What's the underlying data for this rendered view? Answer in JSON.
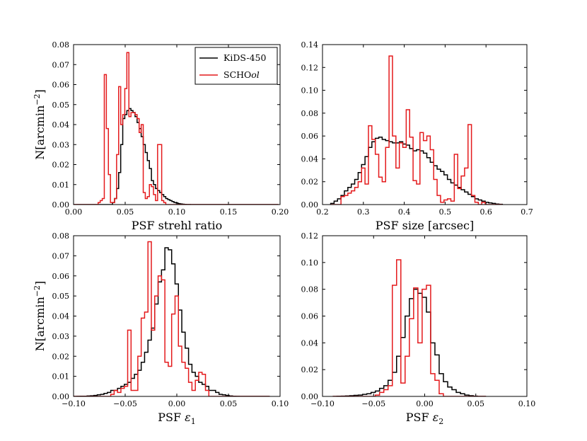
{
  "chart_data": [
    {
      "type": "step-histogram",
      "xlabel": "PSF strehl ratio",
      "ylabel": "N[arcmin^-2]",
      "xlim": [
        0.0,
        0.2
      ],
      "ylim": [
        0.0,
        0.08
      ],
      "xticks": [
        0.0,
        0.05,
        0.1,
        0.15,
        0.2
      ],
      "xtick_labels": [
        "0.00",
        "0.05",
        "0.10",
        "0.15",
        "0.20"
      ],
      "yticks": [
        0.0,
        0.01,
        0.02,
        0.03,
        0.04,
        0.05,
        0.06,
        0.07,
        0.08
      ],
      "ytick_labels": [
        "0.00",
        "0.01",
        "0.02",
        "0.03",
        "0.04",
        "0.05",
        "0.06",
        "0.07",
        "0.08"
      ],
      "legend": {
        "position": "top-right",
        "entries": [
          "KiDS-450",
          "SCHOol"
        ]
      },
      "series": [
        {
          "name": "KiDS-450",
          "color": "#000000",
          "bin_edges": [
            0.0,
            0.1985
          ],
          "values": [
            0,
            0,
            0,
            0,
            0,
            0,
            0,
            0,
            0,
            0,
            0,
            0,
            0,
            0,
            0,
            0,
            0,
            0,
            0,
            0.001,
            0.003,
            0.008,
            0.016,
            0.03,
            0.043,
            0.045,
            0.047,
            0.048,
            0.047,
            0.046,
            0.044,
            0.041,
            0.038,
            0.034,
            0.03,
            0.026,
            0.022,
            0.018,
            0.012,
            0.01,
            0.008,
            0.007,
            0.006,
            0.005,
            0.004,
            0.003,
            0.0025,
            0.002,
            0.0015,
            0.001,
            0.0008,
            0.0005,
            0.0003,
            0.0002,
            0.0001,
            5e-05,
            3e-05,
            0,
            0,
            0,
            0,
            0,
            0,
            0,
            0,
            0,
            0,
            0,
            0,
            0,
            0,
            0,
            0,
            0,
            0,
            0,
            0,
            0,
            0,
            0,
            0,
            0,
            0,
            0,
            0,
            0,
            0,
            0,
            0,
            0,
            0,
            0,
            0,
            0,
            0,
            0,
            0,
            0,
            0,
            0
          ]
        },
        {
          "name": "SCHOol",
          "color": "#e41a1c",
          "bin_edges": [
            0.0,
            0.1985
          ],
          "values": [
            0,
            0,
            0,
            0,
            0,
            0,
            0,
            0,
            0,
            0,
            0,
            0,
            0.001,
            0.002,
            0.003,
            0.065,
            0.038,
            0.015,
            0.001,
            0.001,
            0.003,
            0.025,
            0.059,
            0.04,
            0.045,
            0.058,
            0.076,
            0.044,
            0.046,
            0.046,
            0.045,
            0.043,
            0.036,
            0.04,
            0.006,
            0.003,
            0.004,
            0.01,
            0.009,
            0.005,
            0.002,
            0.03,
            0.03,
            0.002,
            0.001,
            0,
            0,
            0,
            0,
            0,
            0,
            0,
            0,
            0,
            0,
            0,
            0,
            0,
            0,
            0,
            0,
            0,
            0,
            0,
            0,
            0,
            0,
            0,
            0,
            0,
            0,
            0,
            0,
            0,
            0,
            0,
            0,
            0,
            0,
            0,
            0,
            0,
            0,
            0,
            0,
            0,
            0,
            0,
            0,
            0,
            0,
            0,
            0,
            0,
            0,
            0,
            0,
            0,
            0,
            0
          ]
        }
      ]
    },
    {
      "type": "step-histogram",
      "xlabel": "PSF size [arcsec]",
      "ylabel": "",
      "xlim": [
        0.2,
        0.7
      ],
      "ylim": [
        0.0,
        0.14
      ],
      "xticks": [
        0.2,
        0.3,
        0.4,
        0.5,
        0.6,
        0.7
      ],
      "xtick_labels": [
        "0.2",
        "0.3",
        "0.4",
        "0.5",
        "0.6",
        "0.7"
      ],
      "yticks": [
        0.0,
        0.02,
        0.04,
        0.06,
        0.08,
        0.1,
        0.12,
        0.14
      ],
      "ytick_labels": [
        "0.00",
        "0.02",
        "0.04",
        "0.06",
        "0.08",
        "0.10",
        "0.12",
        "0.14"
      ],
      "series": [
        {
          "name": "KiDS-450",
          "color": "#000000",
          "bin_edges": [
            0.22,
            0.64
          ],
          "values": [
            0.001,
            0.003,
            0.005,
            0.008,
            0.012,
            0.015,
            0.018,
            0.022,
            0.028,
            0.035,
            0.042,
            0.05,
            0.055,
            0.058,
            0.059,
            0.057,
            0.056,
            0.055,
            0.054,
            0.054,
            0.055,
            0.053,
            0.052,
            0.049,
            0.047,
            0.048,
            0.047,
            0.045,
            0.041,
            0.037,
            0.034,
            0.031,
            0.029,
            0.026,
            0.022,
            0.019,
            0.017,
            0.015,
            0.013,
            0.011,
            0.009,
            0.007,
            0.005,
            0.004,
            0.003,
            0.002,
            0.0015,
            0.001,
            0.0005,
            0.0002
          ]
        },
        {
          "name": "SCHOol",
          "color": "#e41a1c",
          "bin_edges": [
            0.22,
            0.64
          ],
          "values": [
            0,
            0,
            0,
            0.007,
            0.008,
            0.01,
            0.012,
            0.015,
            0.02,
            0.032,
            0.018,
            0.069,
            0.057,
            0.044,
            0.024,
            0.02,
            0.05,
            0.13,
            0.06,
            0.032,
            0.054,
            0.05,
            0.083,
            0.059,
            0.021,
            0.018,
            0.063,
            0.056,
            0.06,
            0.048,
            0.022,
            0.008,
            0.002,
            0.004,
            0.005,
            0.003,
            0.044,
            0.014,
            0.025,
            0.032,
            0.07,
            0.008,
            0.002,
            0,
            0.002,
            0,
            0,
            0,
            0,
            0
          ]
        }
      ]
    },
    {
      "type": "step-histogram",
      "xlabel": "PSF ε1",
      "ylabel": "N[arcmin^-2]",
      "xlim": [
        -0.1,
        0.1
      ],
      "ylim": [
        0.0,
        0.08
      ],
      "xticks": [
        -0.1,
        -0.05,
        0.0,
        0.05,
        0.1
      ],
      "xtick_labels": [
        "−0.10",
        "−0.05",
        "0.00",
        "0.05",
        "0.10"
      ],
      "yticks": [
        0.0,
        0.01,
        0.02,
        0.03,
        0.04,
        0.05,
        0.06,
        0.07,
        0.08
      ],
      "ytick_labels": [
        "0.00",
        "0.01",
        "0.02",
        "0.03",
        "0.04",
        "0.05",
        "0.06",
        "0.07",
        "0.08"
      ],
      "series": [
        {
          "name": "KiDS-450",
          "color": "#000000",
          "bin_edges": [
            -0.1,
            0.09
          ],
          "values": [
            0,
            5e-05,
            0.0001,
            0.0001,
            0.0002,
            0.0003,
            0.0005,
            0.0008,
            0.001,
            0.0015,
            0.002,
            0.003,
            0.003,
            0.004,
            0.005,
            0.006,
            0.007,
            0.009,
            0.011,
            0.013,
            0.017,
            0.022,
            0.028,
            0.034,
            0.046,
            0.057,
            0.063,
            0.074,
            0.073,
            0.066,
            0.056,
            0.043,
            0.032,
            0.024,
            0.016,
            0.012,
            0.01,
            0.007,
            0.006,
            0.005,
            0.003,
            0.003,
            0.002,
            0.001,
            0.0008,
            0.0005,
            0.0002,
            0.0001,
            5e-05,
            0,
            0,
            0,
            0,
            0,
            0,
            0,
            0,
            0
          ]
        },
        {
          "name": "SCHOol",
          "color": "#e41a1c",
          "bin_edges": [
            -0.1,
            0.09
          ],
          "values": [
            0,
            0,
            0,
            0,
            0,
            0,
            0,
            0,
            0,
            0,
            0,
            0.001,
            0.003,
            0.002,
            0.004,
            0.005,
            0.033,
            0.003,
            0.003,
            0.02,
            0.039,
            0.042,
            0.077,
            0.033,
            0.05,
            0.06,
            0.058,
            0.017,
            0.015,
            0.041,
            0.05,
            0.025,
            0.017,
            0.014,
            0.007,
            0.003,
            0.008,
            0.012,
            0.011,
            0.003,
            0,
            0,
            0,
            0,
            0,
            0,
            0,
            0,
            0,
            0,
            0,
            0,
            0,
            0,
            0,
            0,
            0,
            0
          ]
        }
      ]
    },
    {
      "type": "step-histogram",
      "xlabel": "PSF ε2",
      "ylabel": "",
      "xlim": [
        -0.1,
        0.1
      ],
      "ylim": [
        0.0,
        0.12
      ],
      "xticks": [
        -0.1,
        -0.05,
        0.0,
        0.05,
        0.1
      ],
      "xtick_labels": [
        "−0.10",
        "−0.05",
        "0.00",
        "0.05",
        "0.10"
      ],
      "yticks": [
        0.0,
        0.02,
        0.04,
        0.06,
        0.08,
        0.1,
        0.12
      ],
      "ytick_labels": [
        "0.00",
        "0.02",
        "0.04",
        "0.06",
        "0.08",
        "0.10",
        "0.12"
      ],
      "series": [
        {
          "name": "KiDS-450",
          "color": "#000000",
          "bin_edges": [
            -0.09,
            0.06
          ],
          "values": [
            0,
            0.0001,
            0.0002,
            0.0003,
            0.0005,
            0.0008,
            0.001,
            0.0015,
            0.002,
            0.003,
            0.004,
            0.006,
            0.008,
            0.012,
            0.018,
            0.03,
            0.044,
            0.06,
            0.073,
            0.08,
            0.077,
            0.074,
            0.063,
            0.04,
            0.031,
            0.017,
            0.011,
            0.007,
            0.005,
            0.003,
            0.002,
            0.001,
            0.0005,
            0.0002,
            0,
            0
          ]
        },
        {
          "name": "SCHOol",
          "color": "#e41a1c",
          "bin_edges": [
            -0.09,
            0.06
          ],
          "values": [
            0,
            0,
            0,
            0,
            0,
            0,
            0,
            0,
            0,
            0,
            0.001,
            0.003,
            0.005,
            0.008,
            0.083,
            0.102,
            0.01,
            0.03,
            0.058,
            0.081,
            0.04,
            0.08,
            0.083,
            0.017,
            0.012,
            0.002,
            0,
            0,
            0,
            0,
            0,
            0,
            0,
            0,
            0,
            0
          ]
        }
      ]
    }
  ]
}
